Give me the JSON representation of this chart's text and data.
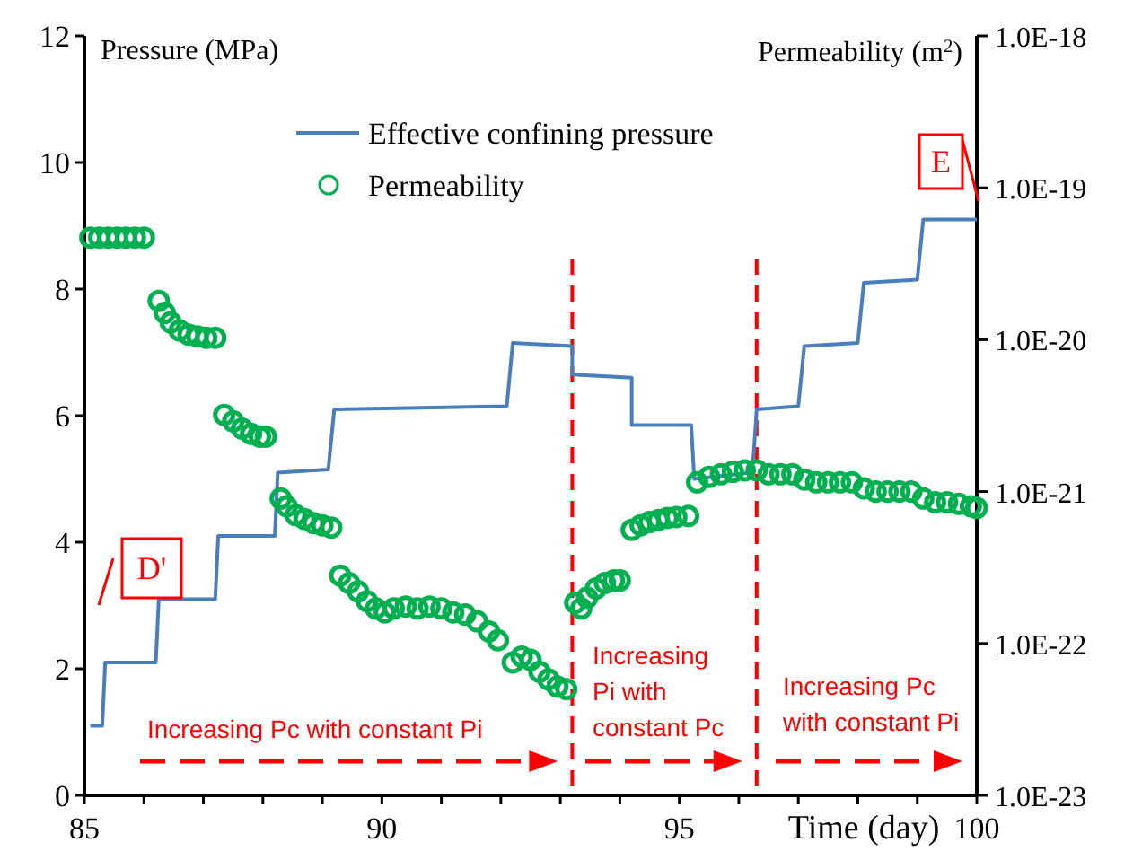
{
  "chart_data": {
    "type": "line",
    "ylabel": "Pressure (MPa)",
    "y2label": "Permeability (m$^{2}$)",
    "xlabel": "Time (day)",
    "xlim": [
      85,
      100
    ],
    "xticks": [
      85,
      {
        "value": 86,
        "label": null
      },
      {
        "value": 87,
        "label": null
      },
      {
        "value": 88,
        "label": null
      },
      {
        "value": 89,
        "label": null
      },
      90,
      {
        "value": 91,
        "label": null
      },
      {
        "value": 92,
        "label": null
      },
      {
        "value": 93,
        "label": null
      },
      {
        "value": 94,
        "label": null
      },
      95,
      {
        "value": 96,
        "label": null
      },
      {
        "value": 97,
        "label": null
      },
      {
        "value": 98,
        "label": null
      },
      {
        "value": 99,
        "label": null
      },
      100
    ],
    "ylim": [
      0,
      12
    ],
    "yticks": [
      0,
      2,
      4,
      6,
      8,
      10,
      12
    ],
    "y2lim": [
      1e-23,
      1e-18
    ],
    "y2ticks": [
      {
        "value": 1e-23,
        "label": "1.0E-23"
      },
      {
        "value": 1e-22,
        "label": "1.0E-22"
      },
      {
        "value": 1e-21,
        "label": "1.0E-21"
      },
      {
        "value": 1e-20,
        "label": "1.0E-20"
      },
      {
        "value": 1e-19,
        "label": "1.0E-19"
      },
      {
        "value": 1e-18,
        "label": "1.0E-18"
      }
    ],
    "log": "y2",
    "grid": false,
    "legend": "top",
    "series": [
      {
        "name": "Effective confining pressure",
        "color": "#4a7ebb",
        "marker": "none",
        "line_style": "solid",
        "x": [
          85.1,
          85.3,
          85.35,
          86.2,
          86.25,
          87.2,
          87.25,
          88.2,
          88.25,
          89.1,
          89.2,
          92.1,
          92.2,
          93.2,
          93.2,
          94.2,
          94.2,
          95.2,
          95.25,
          96.2,
          96.25,
          96.3,
          97.0,
          97.1,
          98.0,
          98.1,
          99.0,
          99.1,
          100.0
        ],
        "values": [
          1.1,
          1.1,
          2.1,
          2.1,
          3.1,
          3.1,
          4.1,
          4.1,
          5.1,
          5.15,
          6.1,
          6.15,
          7.15,
          7.1,
          6.65,
          6.6,
          5.85,
          5.85,
          5.0,
          5.1,
          5.4,
          6.1,
          6.15,
          7.1,
          7.15,
          8.1,
          8.15,
          9.1,
          9.1
        ]
      },
      {
        "name": "Permeability",
        "type": "scatter",
        "axis": "y2",
        "color": "#00b050",
        "marker": "circle",
        "x": [
          85.1,
          85.25,
          85.4,
          85.55,
          85.7,
          85.85,
          86.0,
          86.25,
          86.35,
          86.45,
          86.6,
          86.75,
          86.9,
          87.05,
          87.2,
          87.35,
          87.5,
          87.65,
          87.8,
          87.95,
          88.05,
          88.3,
          88.4,
          88.55,
          88.7,
          88.85,
          89.0,
          89.15,
          89.3,
          89.45,
          89.6,
          89.75,
          89.9,
          90.05,
          90.2,
          90.4,
          90.6,
          90.8,
          91.0,
          91.2,
          91.4,
          91.6,
          91.8,
          91.95,
          92.2,
          92.35,
          92.5,
          92.65,
          92.8,
          92.95,
          93.1,
          93.25,
          93.35,
          93.45,
          93.6,
          93.75,
          93.9,
          94.0,
          94.2,
          94.35,
          94.5,
          94.65,
          94.8,
          94.95,
          95.15,
          95.3,
          95.5,
          95.7,
          95.9,
          96.1,
          96.3,
          96.5,
          96.7,
          96.9,
          97.1,
          97.3,
          97.5,
          97.7,
          97.9,
          98.1,
          98.3,
          98.5,
          98.7,
          98.9,
          99.1,
          99.3,
          99.5,
          99.7,
          99.9,
          100.0
        ],
        "values": [
          4.7e-20,
          4.7e-20,
          4.7e-20,
          4.7e-20,
          4.7e-20,
          4.7e-20,
          4.7e-20,
          1.8e-20,
          1.5e-20,
          1.3e-20,
          1.15e-20,
          1.08e-20,
          1.05e-20,
          1.03e-20,
          1.03e-20,
          3.2e-21,
          2.9e-21,
          2.6e-21,
          2.4e-21,
          2.3e-21,
          2.3e-21,
          9e-22,
          8e-22,
          7e-22,
          6.6e-22,
          6.2e-22,
          6e-22,
          5.8e-22,
          2.8e-22,
          2.5e-22,
          2.2e-22,
          1.9e-22,
          1.7e-22,
          1.6e-22,
          1.7e-22,
          1.75e-22,
          1.7e-22,
          1.75e-22,
          1.7e-22,
          1.6e-22,
          1.55e-22,
          1.4e-22,
          1.2e-22,
          1.05e-22,
          7.5e-23,
          8.2e-23,
          7.8e-23,
          6.5e-23,
          5.8e-23,
          5.2e-23,
          5e-23,
          1.85e-22,
          1.7e-22,
          2e-22,
          2.3e-22,
          2.5e-22,
          2.6e-22,
          2.6e-22,
          5.6e-22,
          6e-22,
          6.3e-22,
          6.5e-22,
          6.7e-22,
          6.8e-22,
          6.9e-22,
          1.15e-21,
          1.25e-21,
          1.3e-21,
          1.35e-21,
          1.38e-21,
          1.38e-21,
          1.3e-21,
          1.3e-21,
          1.3e-21,
          1.2e-21,
          1.15e-21,
          1.15e-21,
          1.15e-21,
          1.15e-21,
          1.05e-21,
          1e-21,
          1e-21,
          1e-21,
          1e-21,
          9e-22,
          8.5e-22,
          8.5e-22,
          8.3e-22,
          8e-22,
          7.8e-22
        ]
      }
    ],
    "ref_lines": [
      {
        "axis": "x",
        "value": 93.2,
        "color": "#ff0000",
        "line_style": "dashed"
      },
      {
        "axis": "x",
        "value": 96.3,
        "color": "#ff0000",
        "line_style": "dashed"
      }
    ],
    "annotations": [
      "D'",
      "E",
      "Increasing Pc with constant Pi",
      "Increasing\nPi with\nconstant Pc",
      "Increasing Pc\nwith constant Pi"
    ]
  }
}
